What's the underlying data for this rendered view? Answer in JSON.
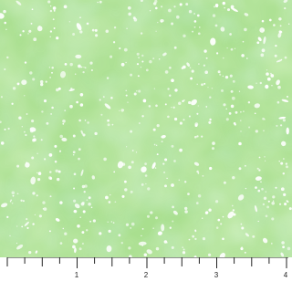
{
  "ruler": {
    "labels": [
      "1",
      "2",
      "3",
      "4"
    ]
  },
  "colors": {
    "fabric_base": "#a9df8f",
    "fabric_light": "#cdeca1",
    "fabric_mint": "#9fe0b1",
    "speckle": "#ffffff",
    "ruler_line": "#222222"
  }
}
